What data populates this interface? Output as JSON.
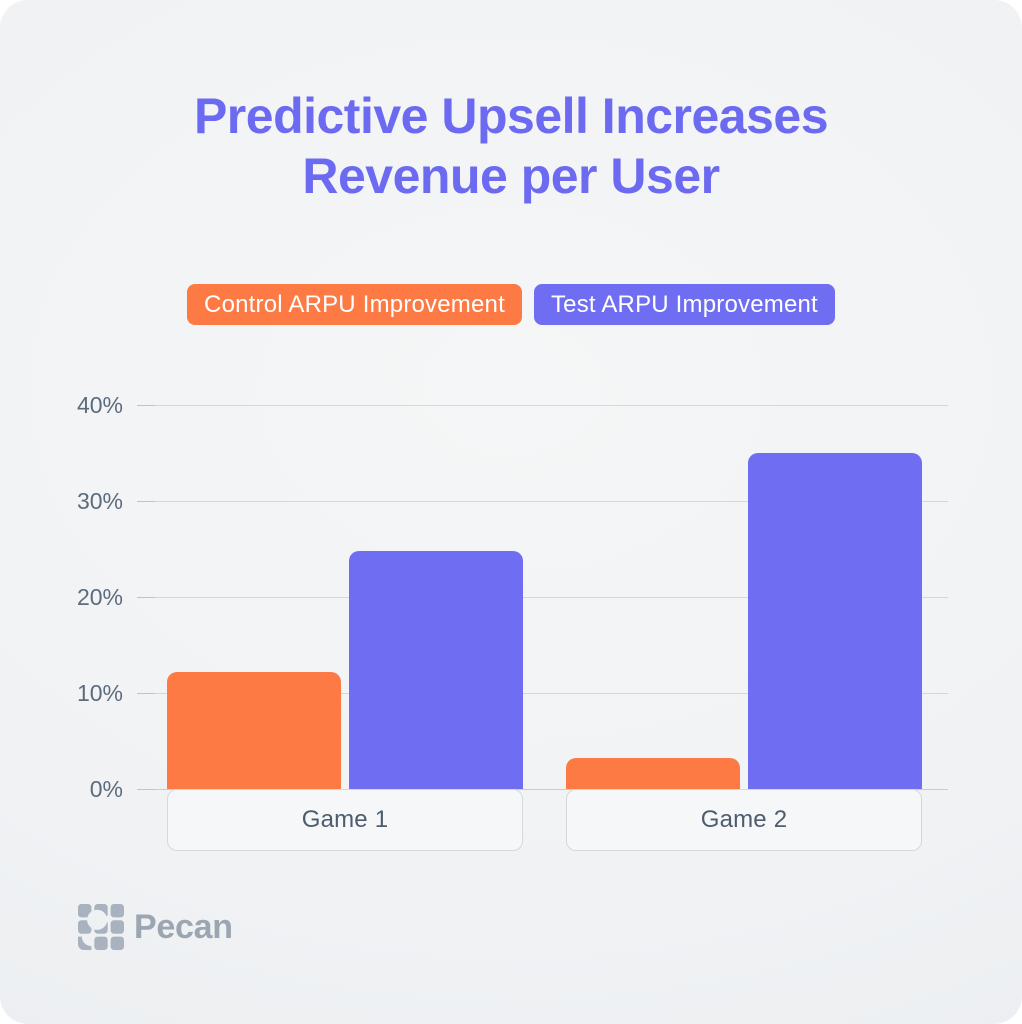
{
  "page": {
    "title_line1": "Predictive Upsell Increases",
    "title_line2": "Revenue per User",
    "title_color": "#6c6af0"
  },
  "chart_data": {
    "type": "bar",
    "title": "Predictive Upsell Increases Revenue per User",
    "categories": [
      "Game 1",
      "Game 2"
    ],
    "series": [
      {
        "name": "Control ARPU Improvement",
        "color": "#fd7a44",
        "values": [
          12.2,
          3.2
        ]
      },
      {
        "name": "Test ARPU Improvement",
        "color": "#6f6ef2",
        "values": [
          24.8,
          35.0
        ]
      }
    ],
    "xlabel": "",
    "ylabel": "",
    "ylim": [
      0,
      40
    ],
    "yticks": [
      0,
      10,
      20,
      30,
      40
    ],
    "ytick_suffix": "%",
    "grid": true,
    "legend_position": "top"
  },
  "footer": {
    "brand": "Pecan",
    "brand_color": "#9ba6b2",
    "logo_color": "#a9b3c0"
  }
}
